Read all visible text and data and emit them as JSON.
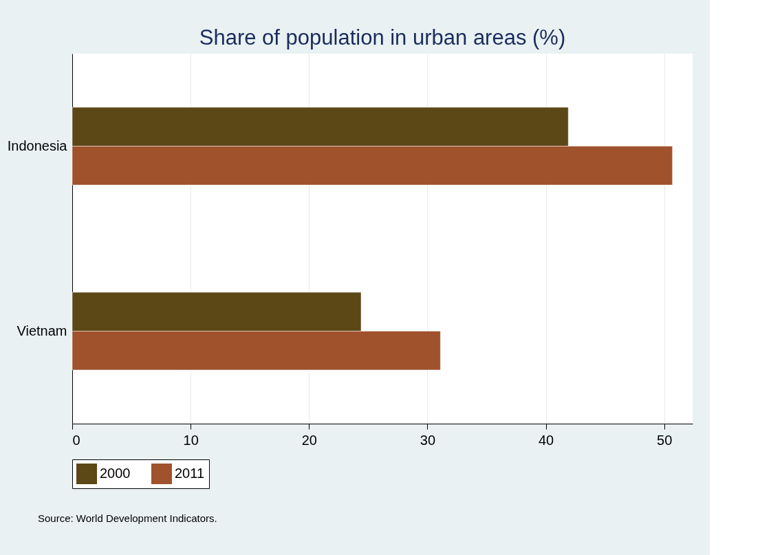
{
  "chart_data": {
    "type": "bar",
    "orientation": "horizontal",
    "title": "Share of population in urban areas (%)",
    "categories": [
      "Indonesia",
      "Vietnam"
    ],
    "series": [
      {
        "name": "2000",
        "color": "#5c4717",
        "values": [
          41.9,
          24.4
        ]
      },
      {
        "name": "2011",
        "color": "#a0522d",
        "values": [
          50.7,
          31.1
        ]
      }
    ],
    "xlim": [
      0,
      52.4
    ],
    "xticks": [
      0,
      10,
      20,
      30,
      40,
      50
    ],
    "grid": "x",
    "legend": "bottom",
    "annotations": [
      "Source: World Development Indicators."
    ]
  }
}
